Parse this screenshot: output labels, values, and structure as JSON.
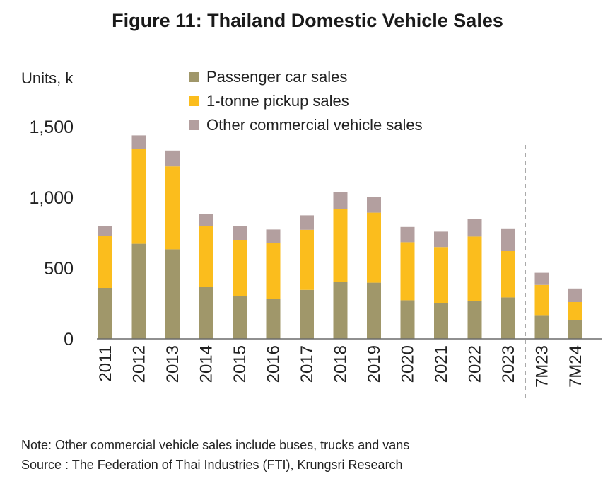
{
  "title": "Figure 11: Thailand Domestic Vehicle Sales",
  "unit_label": "Units, k",
  "note": "Note: Other commercial vehicle sales include buses, trucks and vans",
  "source": "Source : The Federation of Thai Industries (FTI), Krungsri Research",
  "chart_data": {
    "type": "bar",
    "stacked": true,
    "title": "Figure 11: Thailand Domestic Vehicle Sales",
    "ylabel": "Units, k",
    "ylim": [
      0,
      1500
    ],
    "yticks": [
      "0",
      "500",
      "1,000",
      "1,500"
    ],
    "ytick_values": [
      0,
      500,
      1000,
      1500
    ],
    "categories": [
      "2011",
      "2012",
      "2013",
      "2014",
      "2015",
      "2016",
      "2017",
      "2018",
      "2019",
      "2020",
      "2021",
      "2022",
      "2023",
      "7M23",
      "7M24"
    ],
    "separator_after": "2023",
    "legend_position": "top-center",
    "grid": false,
    "series": [
      {
        "name": "Passenger car sales",
        "color": "#a0976a",
        "values": [
          360,
          672,
          633,
          370,
          300,
          280,
          346,
          400,
          397,
          273,
          252,
          265,
          293,
          168,
          135
        ]
      },
      {
        "name": "1-tonne pickup sales",
        "color": "#fbbd1d",
        "values": [
          369,
          670,
          586,
          425,
          400,
          395,
          425,
          515,
          495,
          410,
          397,
          458,
          327,
          213,
          125
        ]
      },
      {
        "name": "Other commercial vehicle sales",
        "color": "#b39f9f",
        "values": [
          66,
          96,
          112,
          88,
          99,
          98,
          102,
          125,
          113,
          108,
          109,
          124,
          156,
          86,
          96
        ]
      }
    ]
  }
}
